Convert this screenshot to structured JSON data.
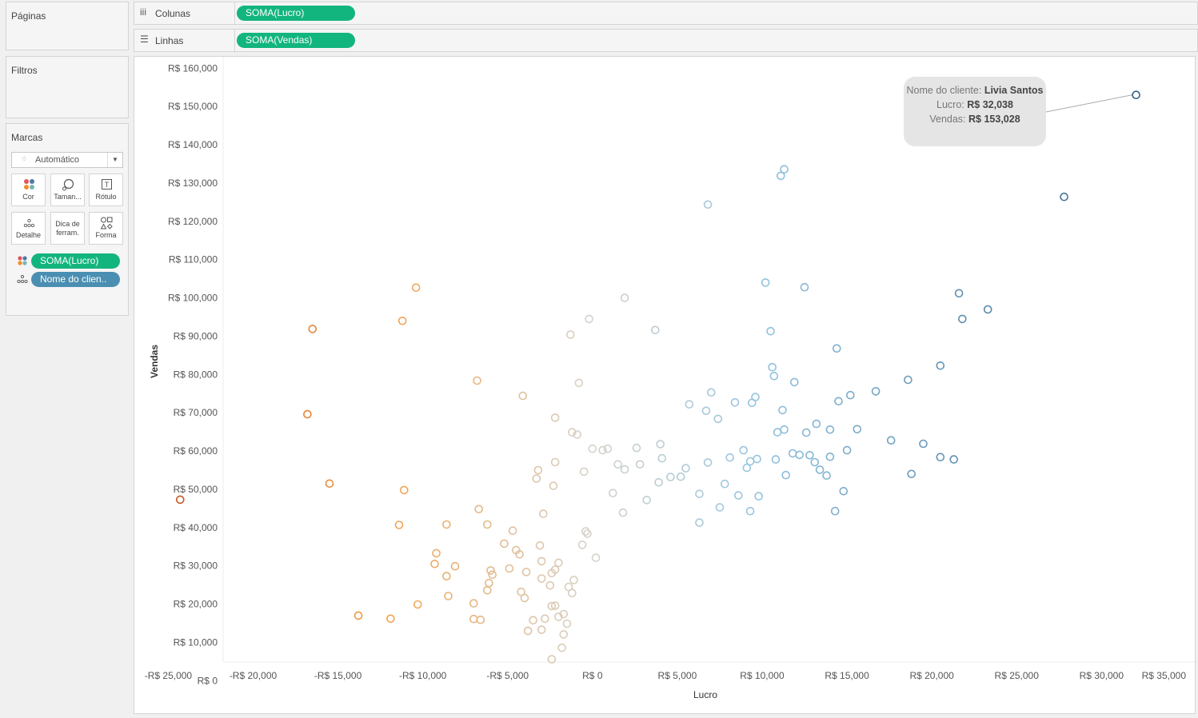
{
  "sidebar": {
    "pages_title": "Páginas",
    "filters_title": "Filtros",
    "marks": {
      "title": "Marcas",
      "mark_type": "Automático",
      "buttons": [
        {
          "label": "Cor",
          "icon": "color-icon"
        },
        {
          "label": "Taman...",
          "icon": "size-icon"
        },
        {
          "label": "Rótulo",
          "icon": "label-icon"
        },
        {
          "label": "Detalhe",
          "icon": "detail-icon"
        },
        {
          "label": "Dica de ferram.",
          "icon": "tooltip-icon"
        },
        {
          "label": "Forma",
          "icon": "shape-icon"
        }
      ],
      "fields": [
        {
          "label": "SOMA(Lucro)",
          "icon": "color-icon",
          "color": "#12b57d"
        },
        {
          "label": "Nome do clien..",
          "icon": "detail-icon",
          "color": "#4a8fb2"
        }
      ]
    }
  },
  "shelves": {
    "columns": {
      "label": "Colunas",
      "pill": "SOMA(Lucro)"
    },
    "rows": {
      "label": "Linhas",
      "pill": "SOMA(Vendas)"
    }
  },
  "tooltip": {
    "name_label": "Nome do cliente:",
    "name_value": "Livia Santos",
    "profit_label": "Lucro:",
    "profit_value": "R$ 32,038",
    "sales_label": "Vendas:",
    "sales_value": "R$ 153,028"
  },
  "chart_data": {
    "type": "scatter",
    "xlabel": "Lucro",
    "ylabel": "Vendas",
    "xlim": [
      -27000,
      35500
    ],
    "ylim": [
      -8500,
      163000
    ],
    "x_ticks": [
      -25000,
      -20000,
      -15000,
      -10000,
      -5000,
      0,
      5000,
      10000,
      15000,
      20000,
      25000,
      30000,
      35000
    ],
    "x_tick_labels": [
      "-R$ 25,000",
      "-R$ 20,000",
      "-R$ 15,000",
      "-R$ 10,000",
      "-R$ 5,000",
      "R$ 0",
      "R$ 5,000",
      "R$ 10,000",
      "R$ 15,000",
      "R$ 20,000",
      "R$ 25,000",
      "R$ 30,000",
      "R$ 35,000"
    ],
    "y_ticks": [
      0,
      10000,
      20000,
      30000,
      40000,
      50000,
      60000,
      70000,
      80000,
      90000,
      100000,
      110000,
      120000,
      130000,
      140000,
      150000,
      160000
    ],
    "y_tick_labels": [
      "R$ 0",
      "R$ 10,000",
      "R$ 20,000",
      "R$ 30,000",
      "R$ 40,000",
      "R$ 50,000",
      "R$ 60,000",
      "R$ 70,000",
      "R$ 80,000",
      "R$ 90,000",
      "R$ 100,000",
      "R$ 110,000",
      "R$ 120,000",
      "R$ 130,000",
      "R$ 140,000",
      "R$ 150,000",
      "R$ 160,000"
    ],
    "grid": false,
    "marker": "hollow-circle",
    "color_encoding": "SOMA(Lucro)",
    "color_scale": {
      "negative": "#c9521c",
      "mid_negative": "#f2a049",
      "zero": "#d6d3cc",
      "mid_positive": "#93c4df",
      "positive": "#2d5d85",
      "min": -25000,
      "max": 33000
    },
    "highlighted_point": {
      "x": 32038,
      "y": 153028
    },
    "points": [
      [
        -24300,
        47300
      ],
      [
        -16800,
        69600
      ],
      [
        -16500,
        91900
      ],
      [
        -15500,
        51500
      ],
      [
        -13800,
        17000
      ],
      [
        -11900,
        16200
      ],
      [
        -10400,
        102700
      ],
      [
        -11200,
        94000
      ],
      [
        -11100,
        49800
      ],
      [
        -11400,
        40700
      ],
      [
        -10300,
        19900
      ],
      [
        -9200,
        33300
      ],
      [
        -9300,
        30500
      ],
      [
        -8600,
        27300
      ],
      [
        -8500,
        22100
      ],
      [
        -8100,
        29900
      ],
      [
        -8600,
        40800
      ],
      [
        -6800,
        78400
      ],
      [
        -6700,
        44800
      ],
      [
        -6200,
        40800
      ],
      [
        -6600,
        15900
      ],
      [
        -7000,
        16100
      ],
      [
        -7000,
        20200
      ],
      [
        -6200,
        23600
      ],
      [
        -6000,
        28800
      ],
      [
        -5900,
        27700
      ],
      [
        -6100,
        25500
      ],
      [
        -5200,
        35800
      ],
      [
        -4700,
        39200
      ],
      [
        -4900,
        29300
      ],
      [
        -4500,
        34100
      ],
      [
        -4300,
        33000
      ],
      [
        -4200,
        23200
      ],
      [
        -4100,
        74400
      ],
      [
        -4000,
        21600
      ],
      [
        -3900,
        28400
      ],
      [
        -3800,
        13000
      ],
      [
        -3500,
        15800
      ],
      [
        -3300,
        52800
      ],
      [
        -3200,
        55000
      ],
      [
        -3000,
        31200
      ],
      [
        -3000,
        13300
      ],
      [
        -2800,
        16200
      ],
      [
        -3000,
        26700
      ],
      [
        -3100,
        35300
      ],
      [
        -2900,
        43600
      ],
      [
        -2200,
        68700
      ],
      [
        -2300,
        50900
      ],
      [
        -2200,
        57100
      ],
      [
        -2000,
        30800
      ],
      [
        -2200,
        29000
      ],
      [
        -2400,
        28100
      ],
      [
        -2500,
        24900
      ],
      [
        -2200,
        19600
      ],
      [
        -2400,
        19500
      ],
      [
        -2000,
        16700
      ],
      [
        -2400,
        5600
      ],
      [
        -1800,
        8600
      ],
      [
        -1700,
        12100
      ],
      [
        -1500,
        14900
      ],
      [
        -1700,
        17400
      ],
      [
        -1300,
        90400
      ],
      [
        -1200,
        64900
      ],
      [
        -1200,
        22900
      ],
      [
        -1400,
        24500
      ],
      [
        -1100,
        26300
      ],
      [
        -900,
        64300
      ],
      [
        -800,
        77800
      ],
      [
        -600,
        35500
      ],
      [
        -500,
        54600
      ],
      [
        -400,
        39000
      ],
      [
        -300,
        38400
      ],
      [
        -200,
        94500
      ],
      [
        0,
        60600
      ],
      [
        200,
        32100
      ],
      [
        600,
        60200
      ],
      [
        900,
        60600
      ],
      [
        1200,
        49000
      ],
      [
        1500,
        56500
      ],
      [
        1900,
        100000
      ],
      [
        1900,
        55200
      ],
      [
        1800,
        43900
      ],
      [
        2600,
        60800
      ],
      [
        2800,
        56500
      ],
      [
        3200,
        47200
      ],
      [
        3700,
        91600
      ],
      [
        3900,
        51800
      ],
      [
        4000,
        61800
      ],
      [
        4600,
        53200
      ],
      [
        4100,
        58100
      ],
      [
        5200,
        53300
      ],
      [
        5500,
        55500
      ],
      [
        6300,
        48800
      ],
      [
        5700,
        72200
      ],
      [
        6800,
        57000
      ],
      [
        6300,
        41300
      ],
      [
        6700,
        70500
      ],
      [
        6800,
        124400
      ],
      [
        7000,
        75300
      ],
      [
        7400,
        68400
      ],
      [
        7500,
        45300
      ],
      [
        7800,
        51400
      ],
      [
        8100,
        58300
      ],
      [
        8400,
        72700
      ],
      [
        8600,
        48400
      ],
      [
        8900,
        60200
      ],
      [
        9100,
        55600
      ],
      [
        9300,
        44300
      ],
      [
        9300,
        57300
      ],
      [
        9400,
        72600
      ],
      [
        9600,
        74100
      ],
      [
        9700,
        57900
      ],
      [
        9800,
        48200
      ],
      [
        10200,
        104000
      ],
      [
        10500,
        91300
      ],
      [
        10600,
        81900
      ],
      [
        10700,
        79600
      ],
      [
        10800,
        57800
      ],
      [
        10900,
        64900
      ],
      [
        11100,
        131900
      ],
      [
        11300,
        133600
      ],
      [
        11200,
        70700
      ],
      [
        11300,
        65600
      ],
      [
        11400,
        53700
      ],
      [
        11800,
        59400
      ],
      [
        11900,
        78000
      ],
      [
        12200,
        59000
      ],
      [
        12500,
        102800
      ],
      [
        12600,
        64800
      ],
      [
        12800,
        58900
      ],
      [
        13100,
        57100
      ],
      [
        13200,
        67100
      ],
      [
        13400,
        55100
      ],
      [
        13800,
        53600
      ],
      [
        14000,
        65600
      ],
      [
        14000,
        58500
      ],
      [
        14300,
        44300
      ],
      [
        14400,
        86800
      ],
      [
        14500,
        73000
      ],
      [
        14800,
        49500
      ],
      [
        15000,
        60200
      ],
      [
        15200,
        74600
      ],
      [
        15600,
        65700
      ],
      [
        16700,
        75600
      ],
      [
        17600,
        62800
      ],
      [
        18600,
        78600
      ],
      [
        18800,
        54000
      ],
      [
        19500,
        61900
      ],
      [
        20500,
        82300
      ],
      [
        20500,
        58400
      ],
      [
        21300,
        57800
      ],
      [
        21600,
        101200
      ],
      [
        21800,
        94500
      ],
      [
        23300,
        97000
      ],
      [
        27800,
        126400
      ],
      [
        32038,
        153028
      ]
    ]
  }
}
